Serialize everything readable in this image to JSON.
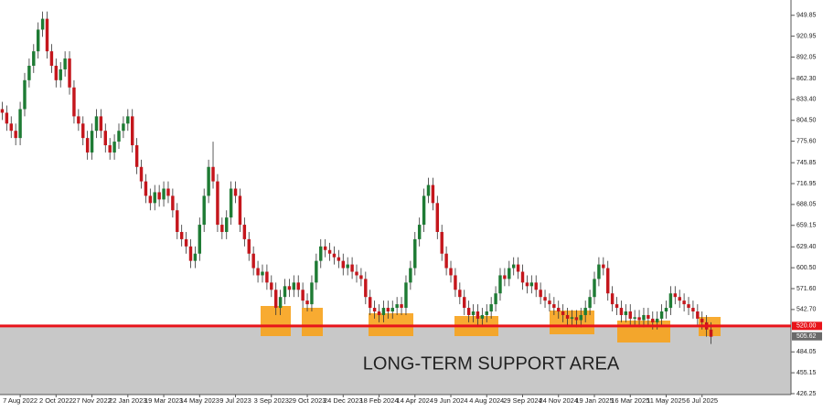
{
  "chart_data": {
    "type": "candlestick",
    "annotation": "LONG-TERM SUPPORT AREA",
    "categories": [
      null,
      null,
      null,
      null,
      "7 Aug 2022",
      null,
      null,
      null,
      null,
      null,
      null,
      null,
      "2 Oct 2022",
      null,
      null,
      null,
      null,
      null,
      null,
      null,
      "27 Nov 2022",
      null,
      null,
      null,
      null,
      null,
      null,
      null,
      "22 Jan 2023",
      null,
      null,
      null,
      null,
      null,
      null,
      null,
      "19 Mar 2023",
      null,
      null,
      null,
      null,
      null,
      null,
      null,
      "14 May 2023",
      null,
      null,
      null,
      null,
      null,
      null,
      null,
      "9 Jul 2023",
      null,
      null,
      null,
      null,
      null,
      null,
      null,
      "3 Sep 2023",
      null,
      null,
      null,
      null,
      null,
      null,
      null,
      "29 Oct 2023",
      null,
      null,
      null,
      null,
      null,
      null,
      null,
      "24 Dec 2023",
      null,
      null,
      null,
      null,
      null,
      null,
      null,
      "18 Feb 2024",
      null,
      null,
      null,
      null,
      null,
      null,
      null,
      "14 Apr 2024",
      null,
      null,
      null,
      null,
      null,
      null,
      null,
      "9 Jun 2024",
      null,
      null,
      null,
      null,
      null,
      null,
      null,
      "4 Aug 2024",
      null,
      null,
      null,
      null,
      null,
      null,
      null,
      "29 Sep 2024",
      null,
      null,
      null,
      null,
      null,
      null,
      null,
      "24 Nov 2024",
      null,
      null,
      null,
      null,
      null,
      null,
      null,
      "19 Jan 2025",
      null,
      null,
      null,
      null,
      null,
      null,
      null,
      "16 Mar 2025",
      null,
      null,
      null,
      null,
      null,
      null,
      null,
      "11 May 2025",
      null,
      null,
      null,
      null,
      null,
      null,
      null,
      "6 Jul 2025",
      null,
      null
    ],
    "open": [
      820,
      815,
      800,
      790,
      780,
      820,
      860,
      880,
      900,
      930,
      945,
      900,
      880,
      860,
      875,
      890,
      850,
      810,
      800,
      780,
      760,
      790,
      810,
      790,
      770,
      760,
      775,
      790,
      800,
      810,
      770,
      740,
      720,
      700,
      690,
      705,
      695,
      710,
      700,
      680,
      650,
      640,
      630,
      610,
      620,
      660,
      700,
      740,
      720,
      660,
      650,
      670,
      710,
      700,
      660,
      640,
      620,
      600,
      590,
      595,
      580,
      570,
      545,
      560,
      575,
      570,
      580,
      570,
      555,
      550,
      580,
      610,
      630,
      625,
      620,
      615,
      610,
      600,
      605,
      595,
      590,
      585,
      560,
      545,
      540,
      535,
      545,
      540,
      545,
      550,
      545,
      580,
      600,
      640,
      660,
      700,
      715,
      690,
      650,
      620,
      600,
      590,
      570,
      560,
      545,
      535,
      540,
      530,
      535,
      540,
      550,
      565,
      590,
      585,
      600,
      605,
      595,
      580,
      575,
      580,
      570,
      560,
      555,
      550,
      545,
      540,
      535,
      530,
      532,
      528,
      535,
      545,
      560,
      585,
      605,
      600,
      565,
      550,
      545,
      535,
      540,
      530,
      532,
      528,
      535,
      530,
      525,
      530,
      540,
      545,
      565,
      560,
      555,
      550,
      545,
      540,
      530,
      525,
      515
    ],
    "high": [
      830,
      825,
      810,
      800,
      830,
      870,
      890,
      910,
      940,
      955,
      955,
      910,
      890,
      885,
      900,
      900,
      860,
      820,
      810,
      790,
      800,
      820,
      820,
      800,
      780,
      785,
      800,
      810,
      820,
      820,
      780,
      750,
      730,
      710,
      715,
      715,
      720,
      720,
      710,
      690,
      660,
      650,
      640,
      630,
      670,
      710,
      750,
      775,
      730,
      670,
      680,
      720,
      720,
      710,
      670,
      650,
      630,
      610,
      605,
      605,
      590,
      580,
      570,
      585,
      585,
      590,
      590,
      580,
      565,
      590,
      620,
      640,
      640,
      635,
      630,
      625,
      620,
      615,
      615,
      605,
      600,
      595,
      570,
      555,
      550,
      555,
      555,
      555,
      560,
      560,
      590,
      610,
      650,
      670,
      710,
      725,
      725,
      700,
      660,
      630,
      610,
      600,
      580,
      570,
      555,
      550,
      550,
      545,
      550,
      560,
      575,
      600,
      600,
      610,
      615,
      615,
      605,
      590,
      590,
      590,
      580,
      570,
      565,
      560,
      555,
      550,
      545,
      542,
      542,
      545,
      555,
      570,
      595,
      615,
      615,
      610,
      575,
      560,
      555,
      550,
      550,
      542,
      542,
      545,
      545,
      540,
      540,
      550,
      555,
      575,
      575,
      570,
      565,
      560,
      555,
      550,
      540,
      535,
      525
    ],
    "low": [
      805,
      790,
      780,
      770,
      770,
      810,
      850,
      870,
      890,
      920,
      890,
      870,
      850,
      850,
      865,
      840,
      800,
      790,
      770,
      750,
      750,
      780,
      780,
      760,
      750,
      750,
      765,
      780,
      790,
      760,
      730,
      710,
      690,
      680,
      680,
      685,
      685,
      690,
      670,
      640,
      630,
      620,
      600,
      600,
      610,
      650,
      690,
      710,
      650,
      640,
      640,
      660,
      690,
      650,
      630,
      610,
      590,
      580,
      580,
      570,
      560,
      535,
      535,
      550,
      560,
      560,
      560,
      545,
      540,
      540,
      570,
      600,
      615,
      610,
      605,
      600,
      590,
      590,
      585,
      580,
      575,
      550,
      535,
      530,
      525,
      525,
      530,
      530,
      535,
      535,
      535,
      570,
      590,
      630,
      650,
      690,
      680,
      640,
      610,
      590,
      580,
      560,
      550,
      535,
      525,
      525,
      520,
      520,
      525,
      530,
      540,
      555,
      575,
      575,
      590,
      585,
      570,
      565,
      565,
      560,
      550,
      545,
      540,
      535,
      530,
      525,
      520,
      520,
      518,
      518,
      525,
      535,
      550,
      575,
      590,
      555,
      540,
      535,
      525,
      525,
      520,
      520,
      518,
      518,
      520,
      515,
      515,
      520,
      530,
      535,
      550,
      545,
      540,
      535,
      530,
      520,
      515,
      505,
      495
    ],
    "close": [
      815,
      800,
      790,
      780,
      820,
      860,
      880,
      900,
      930,
      945,
      900,
      880,
      860,
      875,
      890,
      850,
      810,
      800,
      780,
      760,
      790,
      810,
      790,
      770,
      760,
      775,
      790,
      800,
      810,
      770,
      740,
      720,
      700,
      690,
      705,
      695,
      710,
      700,
      680,
      650,
      640,
      630,
      610,
      620,
      660,
      700,
      740,
      720,
      660,
      650,
      670,
      710,
      700,
      660,
      640,
      620,
      600,
      590,
      595,
      580,
      570,
      545,
      560,
      575,
      570,
      580,
      570,
      555,
      550,
      580,
      610,
      630,
      625,
      620,
      615,
      610,
      600,
      605,
      595,
      590,
      585,
      560,
      545,
      540,
      535,
      545,
      540,
      545,
      550,
      545,
      580,
      600,
      640,
      660,
      700,
      715,
      690,
      650,
      620,
      600,
      590,
      570,
      560,
      545,
      535,
      540,
      530,
      535,
      540,
      550,
      565,
      590,
      585,
      600,
      605,
      595,
      580,
      575,
      580,
      570,
      560,
      555,
      550,
      545,
      540,
      535,
      530,
      532,
      528,
      535,
      545,
      560,
      585,
      605,
      600,
      565,
      550,
      545,
      535,
      540,
      530,
      532,
      528,
      535,
      530,
      525,
      530,
      540,
      545,
      565,
      560,
      555,
      550,
      545,
      540,
      530,
      525,
      515,
      505
    ],
    "up_color": "#1e7b34",
    "down_color": "#c4161c",
    "ylim": [
      425,
      971
    ],
    "yticks": [
      949.85,
      920.95,
      892.05,
      {
        "value": 862.3,
        "label": "862.30"
      },
      {
        "value": 833.4,
        "label": "833.40"
      },
      {
        "value": 804.5,
        "label": "804.50"
      },
      {
        "value": 775.6,
        "label": "775.60"
      },
      745.85,
      716.95,
      688.05,
      659.15,
      {
        "value": 629.4,
        "label": "629.40"
      },
      {
        "value": 600.5,
        "label": "600.50"
      },
      {
        "value": 571.6,
        "label": "571.60"
      },
      {
        "value": 542.7,
        "label": "542.70"
      },
      484.05,
      455.15,
      426.25
    ],
    "hline": {
      "value": 520,
      "label": "520.00",
      "color": "#e8141b"
    },
    "last_price": {
      "value": 505.62,
      "label": "505.62"
    }
  }
}
